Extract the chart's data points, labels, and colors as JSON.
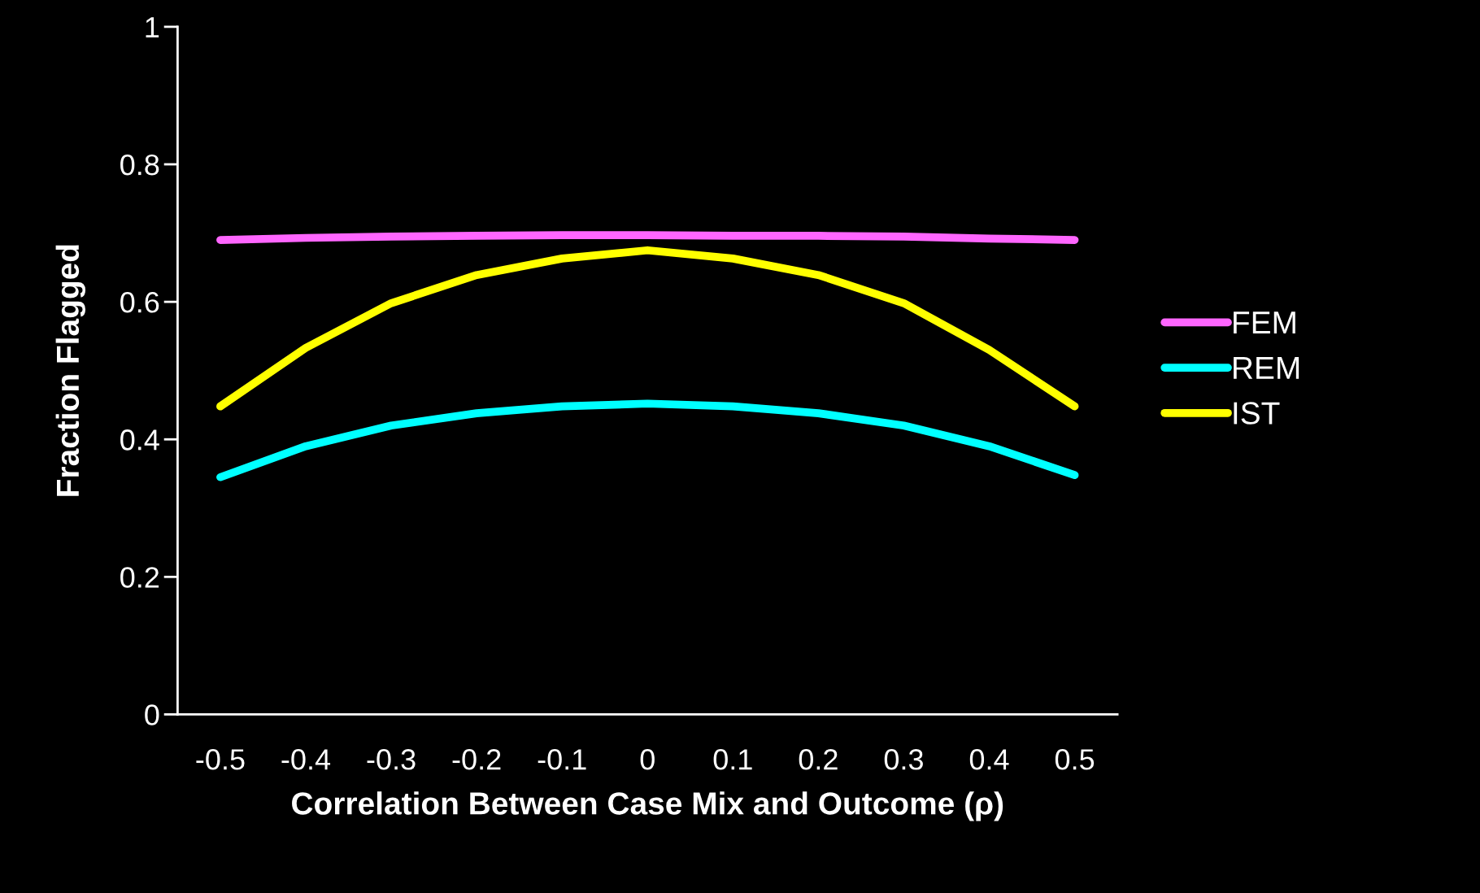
{
  "chart_data": {
    "type": "line",
    "xlabel": "Correlation Between Case Mix and Outcome (ρ)",
    "ylabel": "Fraction Flagged",
    "categories": [
      "-0.5",
      "-0.4",
      "-0.3",
      "-0.2",
      "-0.1",
      "0",
      "0.1",
      "0.2",
      "0.3",
      "0.4",
      "0.5"
    ],
    "series": [
      {
        "name": "FEM",
        "color": "#ff66ff",
        "values": [
          0.69,
          0.693,
          0.695,
          0.696,
          0.697,
          0.697,
          0.696,
          0.696,
          0.695,
          0.692,
          0.69
        ]
      },
      {
        "name": "REM",
        "color": "#00ffff",
        "values": [
          0.345,
          0.39,
          0.42,
          0.438,
          0.448,
          0.452,
          0.448,
          0.438,
          0.42,
          0.39,
          0.348
        ]
      },
      {
        "name": "IST",
        "color": "#ffff00",
        "values": [
          0.448,
          0.533,
          0.598,
          0.639,
          0.663,
          0.675,
          0.663,
          0.639,
          0.598,
          0.53,
          0.448
        ]
      }
    ],
    "ylim": [
      0,
      1
    ],
    "yticks": [
      0,
      0.2,
      0.4,
      0.6,
      0.8,
      1
    ],
    "grid": false,
    "legend": "right",
    "marker": "none",
    "line_style": "solid"
  }
}
